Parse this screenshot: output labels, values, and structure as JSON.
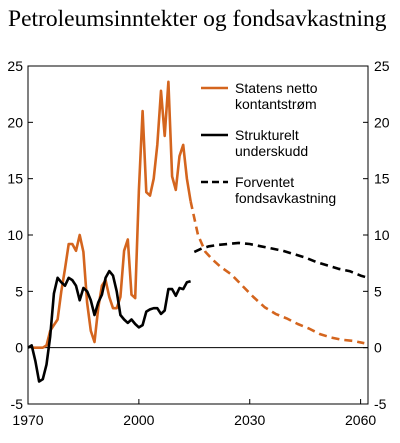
{
  "chart_data": {
    "type": "line",
    "title": "Petroleumsinntekter og fondsavkastning",
    "xlabel": "",
    "ylabel": "",
    "xlim": [
      1970,
      2062
    ],
    "ylim": [
      -5,
      25
    ],
    "x_ticks": [
      1970,
      2000,
      2030,
      2060
    ],
    "y_ticks": [
      -5,
      0,
      5,
      10,
      15,
      20,
      25
    ],
    "legend_position": "top-right",
    "series": [
      {
        "name": "Statens netto kontantstrøm",
        "legend_lines": [
          "Statens netto",
          "kontantstrøm"
        ],
        "color": "#d4651e",
        "style": "solid",
        "x": [
          1971,
          1972,
          1973,
          1974,
          1975,
          1976,
          1977,
          1978,
          1979,
          1980,
          1981,
          1982,
          1983,
          1984,
          1985,
          1986,
          1987,
          1988,
          1989,
          1990,
          1991,
          1992,
          1993,
          1994,
          1995,
          1996,
          1997,
          1998,
          1999,
          2000,
          2001,
          2002,
          2003,
          2004,
          2005,
          2006,
          2007,
          2008,
          2009,
          2010,
          2011,
          2012,
          2013,
          2014
        ],
        "values": [
          0,
          0,
          0,
          0,
          0.2,
          1.5,
          2.0,
          2.5,
          5.0,
          7.0,
          9.2,
          9.2,
          8.6,
          10.0,
          8.5,
          4.0,
          1.5,
          0.5,
          3.5,
          5.5,
          6.0,
          4.5,
          3.5,
          3.5,
          4.5,
          8.6,
          9.6,
          4.7,
          4.4,
          14.0,
          21.0,
          13.8,
          13.5,
          15.0,
          18.0,
          22.8,
          18.8,
          23.6,
          15.2,
          14.0,
          17.0,
          18.0,
          15.0,
          13.0
        ]
      },
      {
        "name": "",
        "color": "#d4651e",
        "style": "dashed",
        "x": [
          2014,
          2016,
          2018,
          2020,
          2022,
          2025,
          2028,
          2031,
          2034,
          2037,
          2040,
          2043,
          2046,
          2049,
          2052,
          2055,
          2058,
          2061
        ],
        "values": [
          13.0,
          10.0,
          8.5,
          7.8,
          7.2,
          6.5,
          5.5,
          4.5,
          3.6,
          3.0,
          2.6,
          2.1,
          1.7,
          1.2,
          0.9,
          0.7,
          0.6,
          0.4
        ]
      },
      {
        "name": "Strukturelt underskudd",
        "legend_lines": [
          "Strukturelt",
          "underskudd"
        ],
        "color": "#000000",
        "style": "solid",
        "x": [
          1970,
          1971,
          1972,
          1973,
          1974,
          1975,
          1976,
          1977,
          1978,
          1979,
          1980,
          1981,
          1982,
          1983,
          1984,
          1985,
          1986,
          1987,
          1988,
          1989,
          1990,
          1991,
          1992,
          1993,
          1994,
          1995,
          1996,
          1997,
          1998,
          1999,
          2000,
          2001,
          2002,
          2003,
          2004,
          2005,
          2006,
          2007,
          2008,
          2009,
          2010,
          2011,
          2012,
          2013,
          2014
        ],
        "values": [
          0,
          0.2,
          -1.2,
          -3.0,
          -2.8,
          -1.5,
          1.0,
          4.8,
          6.2,
          5.8,
          5.5,
          6.2,
          6.0,
          5.5,
          4.2,
          5.3,
          5.0,
          4.2,
          2.9,
          4.0,
          4.7,
          6.2,
          6.8,
          6.4,
          5.0,
          2.9,
          2.5,
          2.2,
          2.5,
          2.1,
          1.8,
          2.0,
          3.2,
          3.4,
          3.5,
          3.5,
          3.0,
          3.3,
          5.2,
          5.2,
          4.6,
          5.3,
          5.2,
          5.8,
          5.9
        ]
      },
      {
        "name": "Forventet fondsavkastning",
        "legend_lines": [
          "Forventet",
          "fondsavkastning"
        ],
        "color": "#000000",
        "style": "dashed",
        "x": [
          2015,
          2017,
          2019,
          2021,
          2024,
          2027,
          2030,
          2033,
          2036,
          2039,
          2042,
          2045,
          2048,
          2051,
          2054,
          2057,
          2060,
          2062
        ],
        "values": [
          8.5,
          8.8,
          9.0,
          9.1,
          9.2,
          9.3,
          9.2,
          9.0,
          8.8,
          8.6,
          8.3,
          8.0,
          7.6,
          7.3,
          7.0,
          6.8,
          6.4,
          6.2
        ]
      }
    ]
  }
}
